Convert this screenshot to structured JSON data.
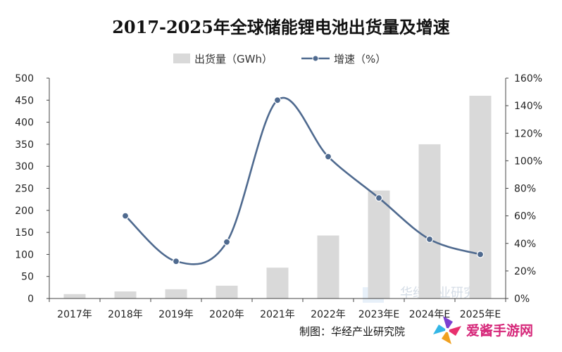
{
  "chart_data": {
    "type": "bar",
    "title": "2017-2025年全球储能锂电池出货量及增速",
    "categories": [
      "2017年",
      "2018年",
      "2019年",
      "2020年",
      "2021年",
      "2022年",
      "2023年E",
      "2024年E",
      "2025年E"
    ],
    "series": [
      {
        "name": "出货量（GWh）",
        "type": "bar",
        "axis": "left",
        "values": [
          10,
          16,
          21,
          29,
          70,
          143,
          245,
          350,
          460
        ]
      },
      {
        "name": "增速（%）",
        "type": "line",
        "axis": "right",
        "values": [
          null,
          60,
          27,
          41,
          144,
          103,
          73,
          43,
          32
        ]
      }
    ],
    "left_axis": {
      "ylim": [
        0,
        500
      ],
      "ticks": [
        "0",
        "50",
        "100",
        "150",
        "200",
        "250",
        "300",
        "350",
        "400",
        "450",
        "500"
      ]
    },
    "right_axis": {
      "ylim": [
        0,
        160
      ],
      "ticks": [
        "0%",
        "20%",
        "40%",
        "60%",
        "80%",
        "100%",
        "120%",
        "140%",
        "160%"
      ]
    },
    "legend_placement": "top-center",
    "grid": false,
    "colors": {
      "bar": "#d9d9d9",
      "line": "#4f6a8f",
      "axis": "#444444"
    }
  },
  "source_note": "制图：华经产业研究院",
  "watermark_text": "华经产业研究院",
  "logo": {
    "text": "爱酱手游网",
    "icon": "pinwheel-icon"
  }
}
